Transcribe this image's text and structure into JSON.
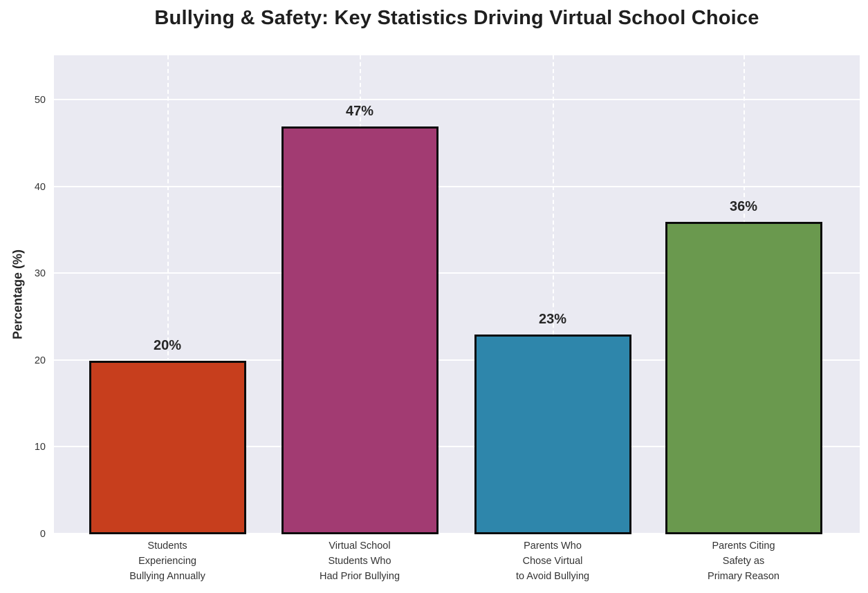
{
  "title": "Bullying & Safety: Key Statistics Driving Virtual School Choice",
  "chart_data": {
    "type": "bar",
    "title": "Bullying & Safety: Key Statistics Driving Virtual School Choice",
    "xlabel": "",
    "ylabel": "Percentage (%)",
    "categories": [
      "Students\nExperiencing\nBullying Annually",
      "Virtual School\nStudents Who\nHad Prior Bullying",
      "Parents Who\nChose Virtual\nto Avoid Bullying",
      "Parents Citing\nSafety as\nPrimary Reason"
    ],
    "values": [
      20,
      47,
      23,
      36
    ],
    "value_labels": [
      "20%",
      "47%",
      "23%",
      "36%"
    ],
    "bar_colors": [
      "#C73E1D",
      "#A23B72",
      "#2E86AB",
      "#6A994E"
    ],
    "bar_edge_color": "#0C0C0C",
    "yticks": [
      0,
      10,
      20,
      30,
      40,
      50
    ],
    "ylim": [
      0,
      55.2
    ],
    "grid": true,
    "grid_color": "#FFFFFF",
    "plot_background": "#EAEAF2",
    "legend_position": "none"
  }
}
